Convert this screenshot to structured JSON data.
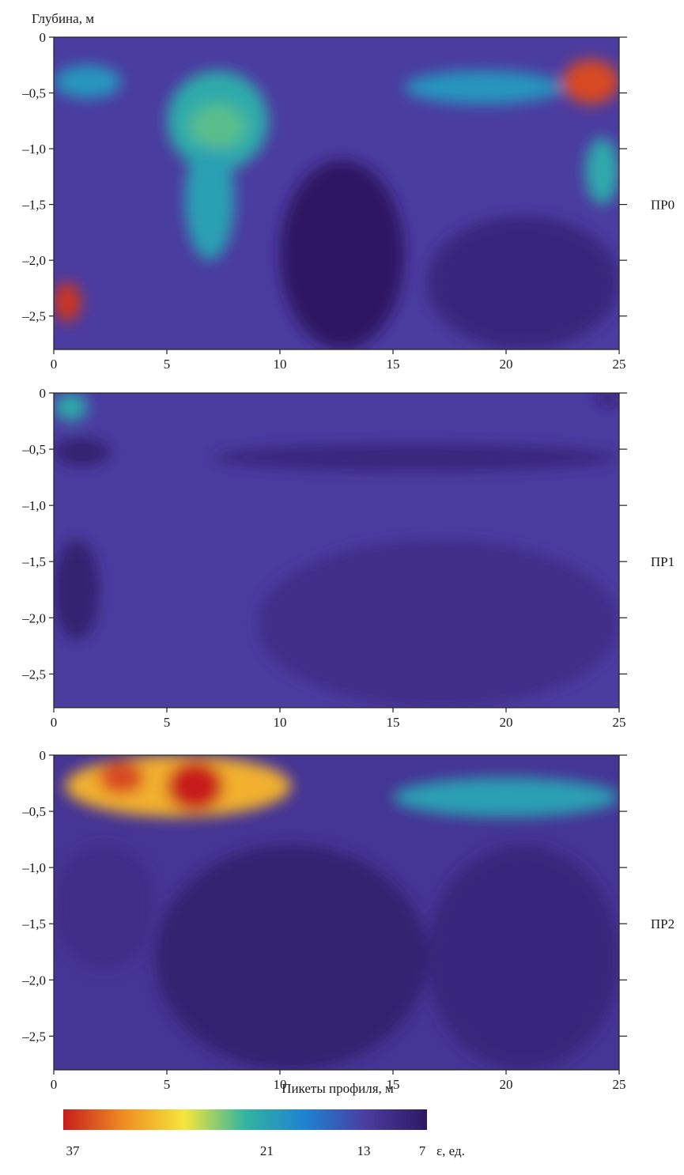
{
  "chart_data": {
    "type": "heatmap",
    "ylabel": "Глубина, м",
    "xlabel": "Пикеты профиля, м",
    "xlim": [
      0,
      25
    ],
    "ylim": [
      -2.8,
      0
    ],
    "x_ticks": [
      0,
      5,
      10,
      15,
      20,
      25
    ],
    "x_tick_labels": [
      "0",
      "5",
      "10",
      "15",
      "20",
      "25"
    ],
    "y_ticks": [
      0,
      -0.5,
      -1.0,
      -1.5,
      -2.0,
      -2.5
    ],
    "y_tick_labels": [
      "0",
      "–0,5",
      "–1,0",
      "–1,5",
      "–2,0",
      "–2,5"
    ],
    "grid": false,
    "panels": [
      {
        "name": "ПР0",
        "anomalies": [
          {
            "x": [
              0,
              3
            ],
            "y": [
              -0.55,
              -0.25
            ],
            "value": 19
          },
          {
            "x": [
              5,
              9.5
            ],
            "y": [
              -1.2,
              -0.3
            ],
            "value": 21
          },
          {
            "x": [
              5.8,
              8
            ],
            "y": [
              -2.0,
              -0.9
            ],
            "value": 20
          },
          {
            "x": [
              6,
              8.5
            ],
            "y": [
              -1.0,
              -0.6
            ],
            "value": 23
          },
          {
            "x": [
              15.5,
              22.5
            ],
            "y": [
              -0.6,
              -0.3
            ],
            "value": 19
          },
          {
            "x": [
              22.5,
              25
            ],
            "y": [
              -0.6,
              -0.2
            ],
            "value": 35
          },
          {
            "x": [
              23.5,
              25
            ],
            "y": [
              -1.5,
              -0.9
            ],
            "value": 21
          },
          {
            "x": [
              0,
              1.2
            ],
            "y": [
              -2.55,
              -2.2
            ],
            "value": 36
          },
          {
            "x": [
              10,
              15.5
            ],
            "y": [
              -2.8,
              -1.1
            ],
            "value": 7
          },
          {
            "x": [
              16.5,
              25
            ],
            "y": [
              -2.8,
              -1.6
            ],
            "value": 9
          }
        ]
      },
      {
        "name": "ПР1",
        "anomalies": [
          {
            "x": [
              0,
              1.5
            ],
            "y": [
              -0.25,
              0
            ],
            "value": 21
          },
          {
            "x": [
              0,
              2.5
            ],
            "y": [
              -0.65,
              -0.4
            ],
            "value": 8
          },
          {
            "x": [
              7,
              25
            ],
            "y": [
              -0.7,
              -0.45
            ],
            "value": 9
          },
          {
            "x": [
              0,
              2
            ],
            "y": [
              -2.2,
              -1.3
            ],
            "value": 8
          },
          {
            "x": [
              9,
              25
            ],
            "y": [
              -2.8,
              -1.3
            ],
            "value": 10
          },
          {
            "x": [
              24,
              25
            ],
            "y": [
              -0.1,
              0
            ],
            "value": 7
          }
        ]
      },
      {
        "name": "ПР2",
        "anomalies": [
          {
            "x": [
              0.5,
              10.5
            ],
            "y": [
              -0.55,
              0
            ],
            "value": 30
          },
          {
            "x": [
              2,
              4
            ],
            "y": [
              -0.35,
              -0.05
            ],
            "value": 35
          },
          {
            "x": [
              5,
              7.5
            ],
            "y": [
              -0.5,
              -0.05
            ],
            "value": 37
          },
          {
            "x": [
              15,
              25
            ],
            "y": [
              -0.55,
              -0.2
            ],
            "value": 20
          },
          {
            "x": [
              4.5,
              16.5
            ],
            "y": [
              -2.8,
              -0.8
            ],
            "value": 8
          },
          {
            "x": [
              16.5,
              25
            ],
            "y": [
              -2.8,
              -0.8
            ],
            "value": 9
          },
          {
            "x": [
              0,
              4.5
            ],
            "y": [
              -1.9,
              -0.8
            ],
            "value": 10
          }
        ]
      }
    ],
    "colorbar": {
      "labels": [
        "37",
        "21",
        "13",
        "7"
      ],
      "unit": "ε, ед.",
      "colors": [
        "#c81e1e",
        "#f08c23",
        "#f5e63c",
        "#32b4a0",
        "#1e82d2",
        "#4b3ca0",
        "#2d1964"
      ]
    }
  }
}
